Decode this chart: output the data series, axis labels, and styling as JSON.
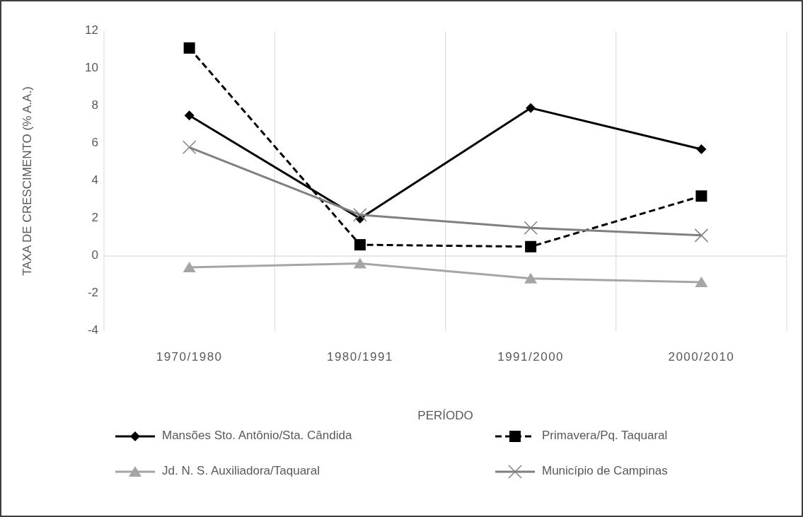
{
  "chart_data": {
    "type": "line",
    "xlabel": "PERÍODO",
    "ylabel": "TAXA DE CRESCIMENTO (% A.A.)",
    "categories": [
      "1970/1980",
      "1980/1991",
      "1991/2000",
      "2000/2010"
    ],
    "series": [
      {
        "name": "Mansões Sto. Antônio/Sta. Cândida",
        "color": "#000000",
        "marker": "diamond",
        "line_style": "solid",
        "values": [
          7.5,
          2.0,
          7.9,
          5.7
        ]
      },
      {
        "name": "Primavera/Pq. Taquaral",
        "color": "#000000",
        "marker": "square",
        "line_style": "dashed",
        "values": [
          11.1,
          0.6,
          0.5,
          3.2
        ]
      },
      {
        "name": "Jd. N. S. Auxiliadora/Taquaral",
        "color": "#a5a5a5",
        "marker": "triangle",
        "line_style": "solid",
        "values": [
          -0.6,
          -0.4,
          -1.2,
          -1.4
        ]
      },
      {
        "name": "Município de Campinas",
        "color": "#808080",
        "marker": "cross",
        "line_style": "solid",
        "values": [
          5.8,
          2.2,
          1.5,
          1.1
        ]
      }
    ],
    "ylim": [
      -4,
      12
    ],
    "yticks": [
      -4,
      -2,
      0,
      2,
      4,
      6,
      8,
      10,
      12
    ],
    "grid": true,
    "legend": "bottom"
  }
}
